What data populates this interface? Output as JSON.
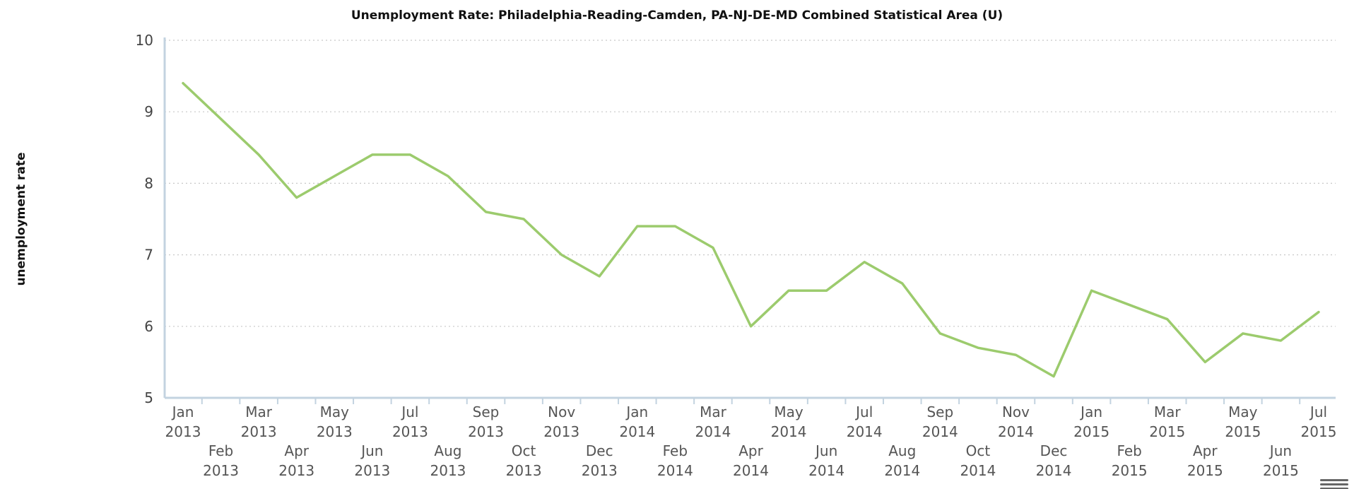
{
  "chart_data": {
    "type": "line",
    "title": "Unemployment Rate: Philadelphia-Reading-Camden, PA-NJ-DE-MD Combined Statistical Area (U)",
    "ylabel": "unemployment rate",
    "xlabel": "",
    "ylim": [
      5,
      10
    ],
    "yticks": [
      "5",
      "6",
      "7",
      "8",
      "9",
      "10"
    ],
    "grid": true,
    "categories": [
      [
        "Jan",
        "2013"
      ],
      [
        "Feb",
        "2013"
      ],
      [
        "Mar",
        "2013"
      ],
      [
        "Apr",
        "2013"
      ],
      [
        "May",
        "2013"
      ],
      [
        "Jun",
        "2013"
      ],
      [
        "Jul",
        "2013"
      ],
      [
        "Aug",
        "2013"
      ],
      [
        "Sep",
        "2013"
      ],
      [
        "Oct",
        "2013"
      ],
      [
        "Nov",
        "2013"
      ],
      [
        "Dec",
        "2013"
      ],
      [
        "Jan",
        "2014"
      ],
      [
        "Feb",
        "2014"
      ],
      [
        "Mar",
        "2014"
      ],
      [
        "Apr",
        "2014"
      ],
      [
        "May",
        "2014"
      ],
      [
        "Jun",
        "2014"
      ],
      [
        "Jul",
        "2014"
      ],
      [
        "Aug",
        "2014"
      ],
      [
        "Sep",
        "2014"
      ],
      [
        "Oct",
        "2014"
      ],
      [
        "Nov",
        "2014"
      ],
      [
        "Dec",
        "2014"
      ],
      [
        "Jan",
        "2015"
      ],
      [
        "Feb",
        "2015"
      ],
      [
        "Mar",
        "2015"
      ],
      [
        "Apr",
        "2015"
      ],
      [
        "May",
        "2015"
      ],
      [
        "Jun",
        "2015"
      ],
      [
        "Jul",
        "2015"
      ]
    ],
    "values": [
      9.4,
      8.9,
      8.4,
      7.8,
      8.1,
      8.4,
      8.4,
      8.1,
      7.6,
      7.5,
      7.0,
      6.7,
      7.4,
      7.4,
      7.1,
      6.0,
      6.5,
      6.5,
      6.9,
      6.6,
      5.9,
      5.7,
      5.6,
      5.3,
      6.5,
      6.3,
      6.1,
      5.5,
      5.9,
      5.8,
      6.2
    ],
    "line_color": "#9ccb6d"
  },
  "icons": {
    "menu": "hamburger-menu-icon"
  }
}
